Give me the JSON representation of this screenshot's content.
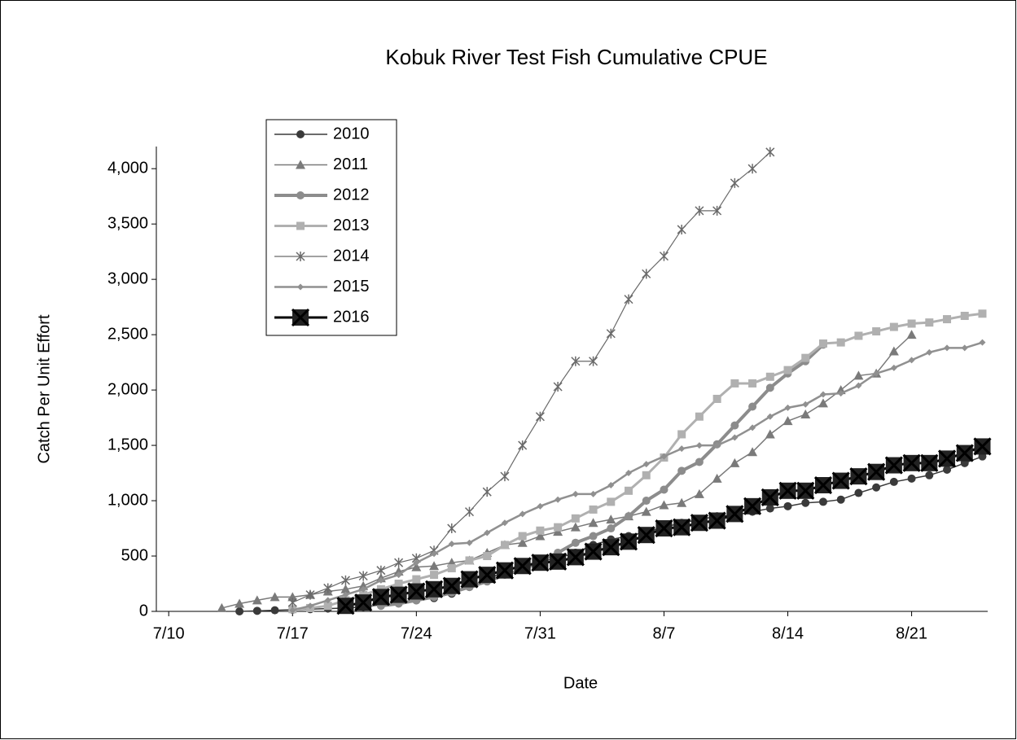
{
  "chart_data": {
    "type": "line",
    "title": "Kobuk River Test Fish Cumulative CPUE",
    "x_label": "Date",
    "y_label": "Catch Per Unit Effort",
    "categories": [
      "7/10",
      null,
      null,
      null,
      null,
      null,
      null,
      "7/17",
      null,
      null,
      null,
      null,
      null,
      null,
      "7/24",
      null,
      null,
      null,
      null,
      null,
      null,
      "7/31",
      null,
      null,
      null,
      null,
      null,
      null,
      "8/7",
      null,
      null,
      null,
      null,
      null,
      null,
      "8/14",
      null,
      null,
      null,
      null,
      null,
      null,
      "8/21",
      null,
      null,
      null,
      null
    ],
    "ylim": [
      0,
      4200
    ],
    "yticks": [
      0,
      500,
      {
        "value": 1000,
        "label": "1,000"
      },
      {
        "value": 1500,
        "label": "1,500"
      },
      {
        "value": 2000,
        "label": "2,000"
      },
      {
        "value": 2500,
        "label": "2,500"
      },
      {
        "value": 3000,
        "label": "3,000"
      },
      {
        "value": 3500,
        "label": "3,500"
      },
      {
        "value": 4000,
        "label": "4,000"
      }
    ],
    "grid": false,
    "legend": "upper left",
    "series": [
      {
        "name": "2010",
        "color": "#3a3a3a",
        "marker": "circle",
        "width": 1.5,
        "values": [
          null,
          null,
          null,
          null,
          0,
          5,
          10,
          15,
          20,
          25,
          30,
          40,
          60,
          80,
          100,
          120,
          160,
          220,
          290,
          360,
          410,
          450,
          480,
          530,
          600,
          650,
          680,
          720,
          760,
          800,
          830,
          860,
          870,
          900,
          930,
          950,
          980,
          990,
          1010,
          1070,
          1120,
          1170,
          1200,
          1230,
          1280,
          1340,
          1400
        ]
      },
      {
        "name": "2011",
        "color": "#7a7a7a",
        "marker": "triangle",
        "width": 1.5,
        "values": [
          null,
          null,
          null,
          30,
          70,
          100,
          130,
          130,
          150,
          180,
          200,
          230,
          300,
          360,
          400,
          410,
          440,
          460,
          530,
          600,
          620,
          680,
          720,
          760,
          800,
          830,
          860,
          900,
          960,
          980,
          1060,
          1200,
          1340,
          1440,
          1600,
          1720,
          1780,
          1880,
          2000,
          2130,
          2150,
          2350,
          2500,
          null,
          null,
          null,
          null
        ]
      },
      {
        "name": "2012",
        "color": "#8c8c8c",
        "marker": "circle",
        "width": 4,
        "values": [
          null,
          null,
          null,
          null,
          null,
          null,
          null,
          null,
          null,
          null,
          null,
          null,
          50,
          70,
          100,
          130,
          170,
          220,
          270,
          330,
          380,
          450,
          530,
          620,
          680,
          750,
          860,
          1000,
          1100,
          1270,
          1350,
          1510,
          1680,
          1850,
          2020,
          2150,
          2260,
          2410,
          null,
          null,
          null,
          null,
          null,
          null,
          null,
          null,
          null
        ]
      },
      {
        "name": "2013",
        "color": "#b0b0b0",
        "marker": "square",
        "width": 3,
        "values": [
          null,
          null,
          null,
          null,
          null,
          null,
          null,
          20,
          30,
          50,
          100,
          150,
          200,
          250,
          290,
          330,
          390,
          460,
          500,
          600,
          680,
          730,
          760,
          840,
          920,
          990,
          1090,
          1230,
          1390,
          1600,
          1760,
          1920,
          2060,
          2060,
          2120,
          2180,
          2290,
          2420,
          2430,
          2490,
          2530,
          2570,
          2600,
          2610,
          2640,
          2670,
          2690
        ]
      },
      {
        "name": "2014",
        "color": "#6a6a6a",
        "marker": "asterisk",
        "width": 1.2,
        "values": [
          null,
          null,
          null,
          null,
          null,
          null,
          null,
          80,
          150,
          210,
          280,
          320,
          370,
          440,
          480,
          550,
          750,
          900,
          1080,
          1220,
          1500,
          1760,
          2030,
          2260,
          2260,
          2510,
          2820,
          3050,
          3210,
          3450,
          3620,
          3620,
          3870,
          4000,
          4150,
          null,
          null,
          null,
          null,
          null,
          null,
          null,
          null,
          null,
          null,
          null,
          null
        ]
      },
      {
        "name": "2015",
        "color": "#909090",
        "marker": "diamond",
        "width": 2.5,
        "values": [
          null,
          null,
          null,
          null,
          null,
          null,
          null,
          10,
          50,
          100,
          150,
          200,
          280,
          330,
          440,
          520,
          610,
          620,
          710,
          800,
          880,
          950,
          1010,
          1060,
          1060,
          1140,
          1250,
          1330,
          1400,
          1470,
          1500,
          1500,
          1570,
          1660,
          1760,
          1840,
          1870,
          1960,
          1970,
          2040,
          2150,
          2200,
          2270,
          2340,
          2380,
          2380,
          2430
        ]
      },
      {
        "name": "2016",
        "color": "#000000",
        "marker": "xsquare",
        "width": 3,
        "values": [
          null,
          null,
          null,
          null,
          null,
          null,
          null,
          null,
          null,
          null,
          50,
          80,
          130,
          150,
          180,
          200,
          230,
          290,
          330,
          370,
          410,
          440,
          450,
          490,
          540,
          580,
          630,
          690,
          750,
          760,
          800,
          820,
          880,
          950,
          1030,
          1090,
          1090,
          1140,
          1180,
          1220,
          1260,
          1320,
          1340,
          1340,
          1380,
          1430,
          1490
        ]
      }
    ]
  }
}
